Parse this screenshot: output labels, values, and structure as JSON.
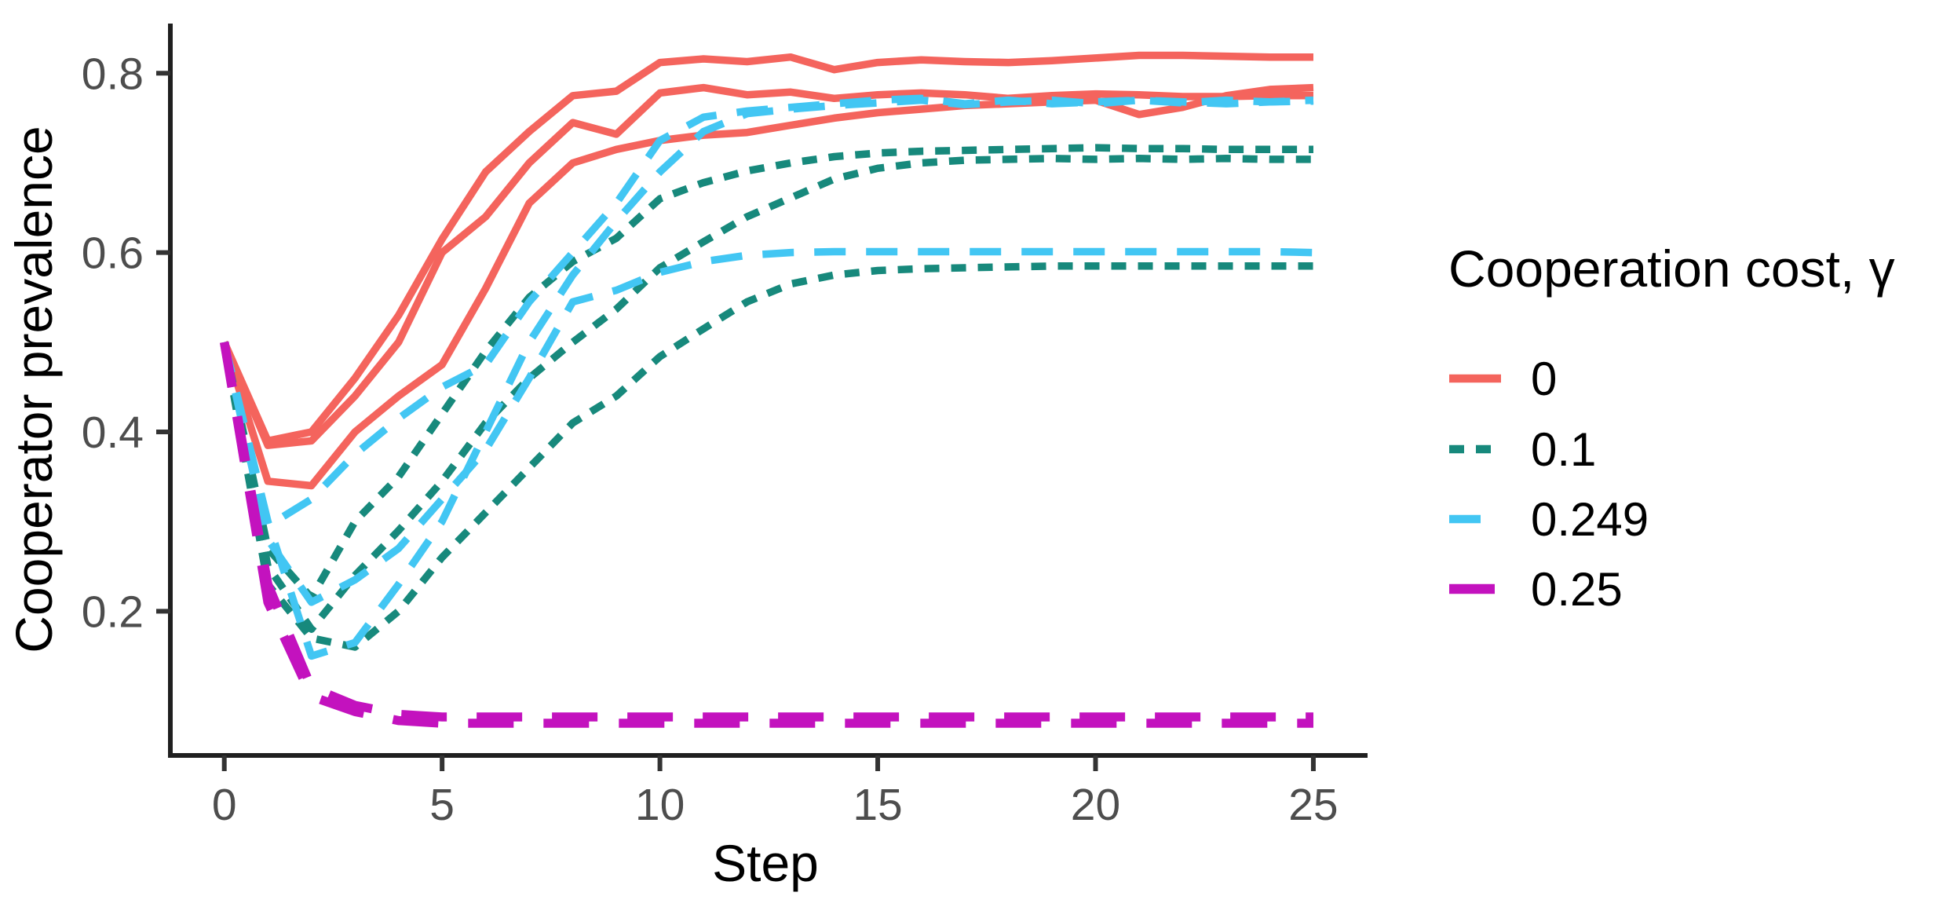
{
  "chart_data": {
    "type": "line",
    "title": "",
    "xlabel": "Step",
    "ylabel": "Cooperator prevalence",
    "legend_title": "Cooperation cost, γ",
    "legend_position": "right",
    "grid": false,
    "x_ticks": [
      0,
      5,
      10,
      15,
      20,
      25
    ],
    "y_ticks": [
      0.2,
      0.4,
      0.6,
      0.8
    ],
    "xlim": [
      0,
      25
    ],
    "ylim": [
      0.04,
      0.855
    ],
    "x": [
      0,
      1,
      2,
      3,
      4,
      5,
      6,
      7,
      8,
      9,
      10,
      11,
      12,
      13,
      14,
      15,
      16,
      17,
      18,
      19,
      20,
      21,
      22,
      23,
      24,
      25
    ],
    "groups": [
      {
        "label": "0",
        "color": "#F4645D",
        "linestyle": "solid",
        "line_width": 9.5,
        "runs": [
          [
            0.5,
            0.39,
            0.4,
            0.46,
            0.53,
            0.615,
            0.69,
            0.735,
            0.775,
            0.78,
            0.812,
            0.816,
            0.813,
            0.818,
            0.804,
            0.812,
            0.815,
            0.813,
            0.812,
            0.814,
            0.817,
            0.82,
            0.82,
            0.819,
            0.818,
            0.818
          ],
          [
            0.5,
            0.385,
            0.39,
            0.44,
            0.5,
            0.6,
            0.64,
            0.7,
            0.745,
            0.732,
            0.778,
            0.784,
            0.776,
            0.779,
            0.772,
            0.776,
            0.778,
            0.776,
            0.772,
            0.775,
            0.777,
            0.776,
            0.774,
            0.774,
            0.775,
            0.775
          ],
          [
            0.5,
            0.345,
            0.34,
            0.4,
            0.44,
            0.475,
            0.56,
            0.655,
            0.7,
            0.715,
            0.725,
            0.731,
            0.734,
            0.742,
            0.75,
            0.756,
            0.76,
            0.764,
            0.766,
            0.768,
            0.77,
            0.754,
            0.762,
            0.775,
            0.782,
            0.784
          ]
        ]
      },
      {
        "label": "0.1",
        "color": "#17897C",
        "linestyle": "dotted",
        "line_width": 9.5,
        "runs": [
          [
            0.5,
            0.27,
            0.215,
            0.3,
            0.35,
            0.42,
            0.49,
            0.55,
            0.59,
            0.616,
            0.66,
            0.678,
            0.691,
            0.7,
            0.707,
            0.711,
            0.713,
            0.714,
            0.715,
            0.716,
            0.717,
            0.716,
            0.716,
            0.715,
            0.715,
            0.715
          ],
          [
            0.5,
            0.25,
            0.18,
            0.24,
            0.29,
            0.345,
            0.41,
            0.46,
            0.5,
            0.537,
            0.583,
            0.612,
            0.64,
            0.661,
            0.682,
            0.694,
            0.7,
            0.703,
            0.704,
            0.705,
            0.704,
            0.705,
            0.704,
            0.705,
            0.704,
            0.704
          ],
          [
            0.5,
            0.23,
            0.17,
            0.16,
            0.2,
            0.26,
            0.31,
            0.36,
            0.41,
            0.44,
            0.484,
            0.515,
            0.545,
            0.565,
            0.575,
            0.58,
            0.582,
            0.583,
            0.584,
            0.585,
            0.585,
            0.585,
            0.585,
            0.585,
            0.585,
            0.585
          ]
        ]
      },
      {
        "label": "0.249",
        "color": "#42C6F3",
        "linestyle": "dashed",
        "line_width": 9.5,
        "runs": [
          [
            0.5,
            0.295,
            0.325,
            0.375,
            0.415,
            0.45,
            0.475,
            0.545,
            0.6,
            0.655,
            0.725,
            0.751,
            0.758,
            0.762,
            0.766,
            0.77,
            0.772,
            0.766,
            0.77,
            0.766,
            0.768,
            0.77,
            0.767,
            0.77,
            0.768,
            0.77
          ],
          [
            0.5,
            0.28,
            0.21,
            0.235,
            0.27,
            0.325,
            0.38,
            0.46,
            0.545,
            0.558,
            0.578,
            0.59,
            0.597,
            0.6,
            0.601,
            0.601,
            0.601,
            0.601,
            0.601,
            0.601,
            0.601,
            0.601,
            0.601,
            0.601,
            0.601,
            0.6
          ],
          [
            0.5,
            0.3,
            0.15,
            0.165,
            0.23,
            0.3,
            0.4,
            0.5,
            0.575,
            0.635,
            0.69,
            0.735,
            0.755,
            0.76,
            0.764,
            0.767,
            0.77,
            0.765,
            0.768,
            0.77,
            0.766,
            0.77,
            0.768,
            0.766,
            0.768,
            0.769
          ]
        ]
      },
      {
        "label": "0.25",
        "color": "#C312BE",
        "linestyle": "longdash",
        "line_width": 11.5,
        "runs": [
          [
            0.5,
            0.23,
            0.115,
            0.095,
            0.085,
            0.082,
            0.082,
            0.082,
            0.082,
            0.082,
            0.082,
            0.082,
            0.082,
            0.082,
            0.082,
            0.082,
            0.082,
            0.082,
            0.082,
            0.082,
            0.082,
            0.082,
            0.082,
            0.082,
            0.082,
            0.082
          ],
          [
            0.5,
            0.21,
            0.105,
            0.088,
            0.078,
            0.075,
            0.075,
            0.075,
            0.075,
            0.075,
            0.075,
            0.075,
            0.075,
            0.075,
            0.075,
            0.075,
            0.075,
            0.075,
            0.075,
            0.075,
            0.075,
            0.075,
            0.075,
            0.075,
            0.075,
            0.075
          ]
        ]
      }
    ]
  }
}
